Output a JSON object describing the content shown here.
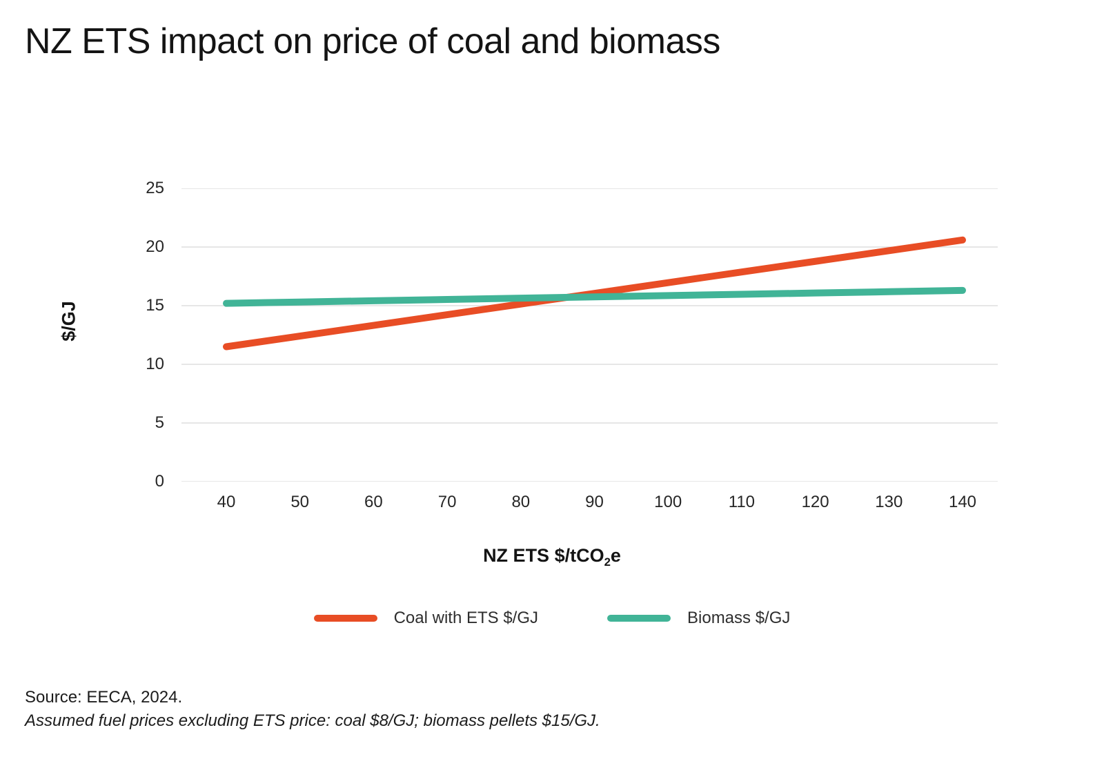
{
  "title": "NZ ETS impact on price of coal and biomass",
  "colors": {
    "coal": "#E84D25",
    "biomass": "#41B497",
    "grid": "#D8D8D8",
    "text": "#141414",
    "tick_text": "#262626"
  },
  "chart_data": {
    "type": "line",
    "title": "NZ ETS impact on price of coal and biomass",
    "xlabel": "NZ ETS $/tCO2e",
    "ylabel": "$/GJ",
    "x": [
      40,
      50,
      60,
      70,
      80,
      90,
      100,
      110,
      120,
      130,
      140
    ],
    "series": [
      {
        "name": "Coal with ETS $/GJ",
        "color": "#E84D25",
        "values": [
          11.5,
          12.41,
          13.32,
          14.23,
          15.14,
          16.05,
          16.96,
          17.87,
          18.78,
          19.69,
          20.6
        ]
      },
      {
        "name": "Biomass $/GJ",
        "color": "#41B497",
        "values": [
          15.2,
          15.31,
          15.42,
          15.53,
          15.64,
          15.75,
          15.86,
          15.97,
          16.08,
          16.19,
          16.3
        ]
      }
    ],
    "xlim": [
      34,
      146
    ],
    "ylim": [
      0,
      25
    ],
    "yticks": [
      0,
      5,
      10,
      15,
      20,
      25
    ],
    "xticks": [
      40,
      50,
      60,
      70,
      80,
      90,
      100,
      110,
      120,
      130,
      140
    ],
    "grid": "horizontal",
    "legend_position": "bottom"
  },
  "axes": {
    "y_label": "$/GJ",
    "x_label_prefix": "NZ ETS $/tCO",
    "x_label_sub": "2",
    "x_label_suffix": "e"
  },
  "legend": [
    {
      "label": "Coal with ETS $/GJ",
      "color": "#E84D25"
    },
    {
      "label": "Biomass $/GJ",
      "color": "#41B497"
    }
  ],
  "footer": {
    "source": "Source: EECA, 2024.",
    "note": "Assumed fuel prices excluding ETS price: coal $8/GJ; biomass pellets $15/GJ."
  }
}
